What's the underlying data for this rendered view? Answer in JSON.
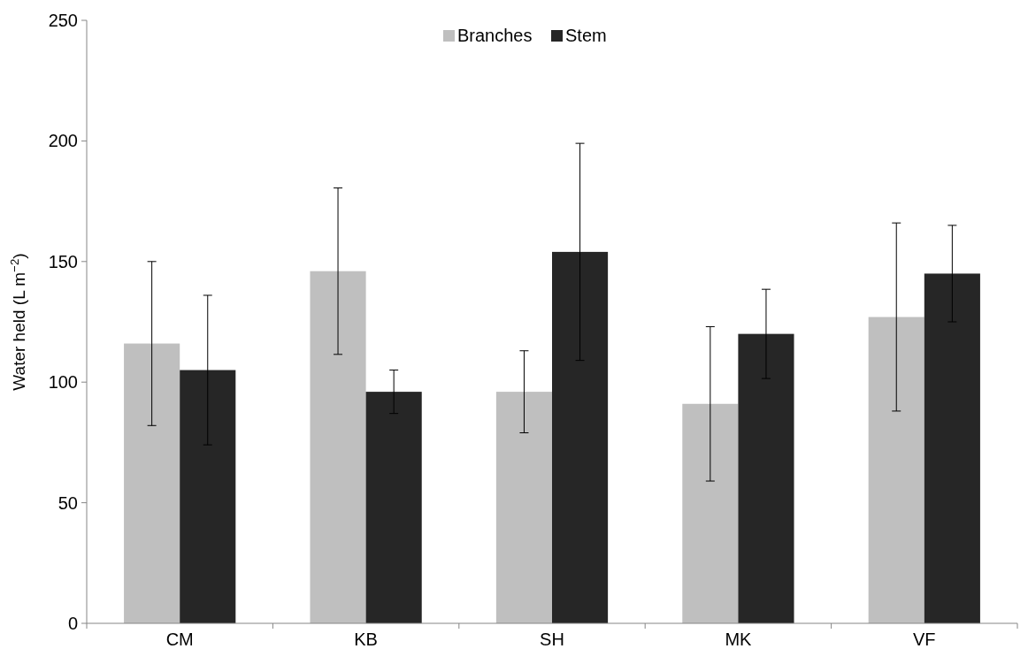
{
  "chart_data": {
    "type": "bar",
    "ylabel": "Water held (L m$^{−2}$)",
    "categories": [
      "CM",
      "KB",
      "SH",
      "MK",
      "VF"
    ],
    "series": [
      {
        "name": "Branches",
        "color": "#bfbfbf",
        "values": [
          116,
          146,
          96,
          91,
          127
        ],
        "errors": [
          34,
          34.5,
          17,
          32,
          39
        ]
      },
      {
        "name": "Stem",
        "color": "#262626",
        "values": [
          105,
          96,
          154,
          120,
          145
        ],
        "errors": [
          31,
          9,
          45,
          18.5,
          20
        ]
      }
    ],
    "ylim": [
      0,
      250
    ],
    "yticks": [
      0,
      50,
      100,
      150,
      200,
      250
    ],
    "legend": "top",
    "grid": false
  }
}
